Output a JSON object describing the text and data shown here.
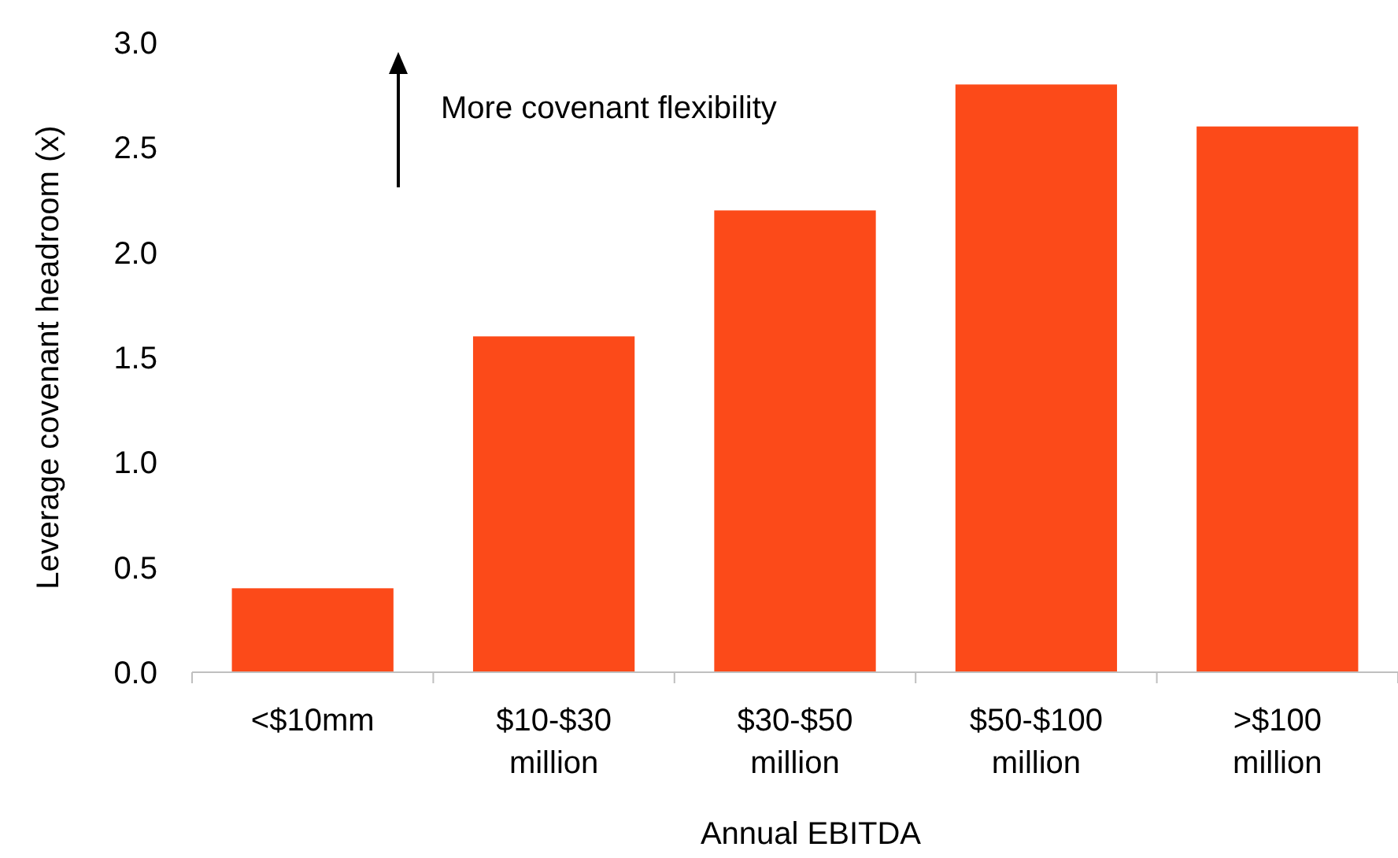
{
  "chart_data": {
    "type": "bar",
    "categories": [
      "<$10mm",
      "$10-$30 million",
      "$30-$50 million",
      "$50-$100 million",
      ">$100 million"
    ],
    "values": [
      0.4,
      1.6,
      2.2,
      2.8,
      2.6
    ],
    "color": "#fc4a19",
    "ylim": [
      0,
      3
    ],
    "yticks": [
      {
        "value": 0,
        "label": "0.0"
      },
      {
        "value": 0.5,
        "label": "0.5"
      },
      {
        "value": 1,
        "label": "1.0"
      },
      {
        "value": 1.5,
        "label": "1.5"
      },
      {
        "value": 2,
        "label": "2.0"
      },
      {
        "value": 2.5,
        "label": "2.5"
      },
      {
        "value": 3,
        "label": "3.0"
      }
    ],
    "xlabel": "Annual EBITDA",
    "ylabel": "Leverage covenant headroom (x)",
    "annotations": [
      "More covenant flexibility"
    ],
    "grid": false
  }
}
